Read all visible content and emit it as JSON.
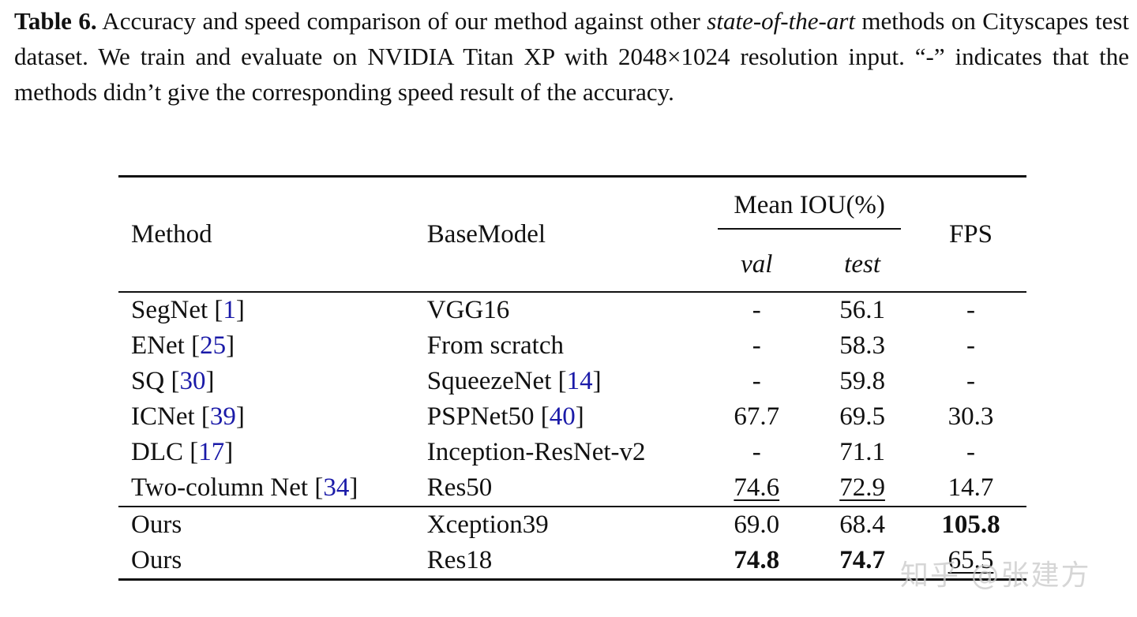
{
  "caption": {
    "label": "Table 6.",
    "text_a": " Accuracy and speed comparison of our method against other ",
    "text_italic": "state-of-the-art",
    "text_b": " methods on Cityscapes test dataset. We train and evaluate on NVIDIA Titan XP with 2048×1024 resolution input. “-” indicates that the methods didn’t give the corresponding speed result of the accuracy."
  },
  "table": {
    "headers": {
      "method": "Method",
      "basemodel": "BaseModel",
      "miou": "Mean IOU(%)",
      "val": "val",
      "test": "test",
      "fps": "FPS"
    },
    "rows": [
      {
        "method": "SegNet",
        "cite": "1",
        "base": "VGG16",
        "base_cite": "",
        "val": "-",
        "test": "56.1",
        "fps": "-"
      },
      {
        "method": "ENet",
        "cite": "25",
        "base": "From scratch",
        "base_cite": "",
        "val": "-",
        "test": "58.3",
        "fps": "-"
      },
      {
        "method": "SQ",
        "cite": "30",
        "base": "SqueezeNet",
        "base_cite": "14",
        "val": "-",
        "test": "59.8",
        "fps": "-"
      },
      {
        "method": "ICNet",
        "cite": "39",
        "base": "PSPNet50",
        "base_cite": "40",
        "val": "67.7",
        "test": "69.5",
        "fps": "30.3"
      },
      {
        "method": "DLC",
        "cite": "17",
        "base": "Inception-ResNet-v2",
        "base_cite": "",
        "val": "-",
        "test": "71.1",
        "fps": "-"
      },
      {
        "method": "Two-column Net",
        "cite": "34",
        "base": "Res50",
        "base_cite": "",
        "val": "74.6",
        "test": "72.9",
        "fps": "14.7"
      }
    ],
    "ours": [
      {
        "method": "Ours",
        "base": "Xception39",
        "val": "69.0",
        "test": "68.4",
        "fps": "105.8"
      },
      {
        "method": "Ours",
        "base": "Res18",
        "val": "74.8",
        "test": "74.7",
        "fps": "65.5"
      }
    ]
  },
  "watermark": "知乎 @张建方"
}
